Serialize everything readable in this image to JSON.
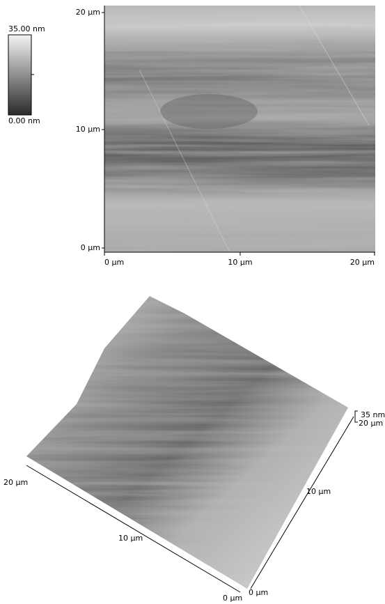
{
  "color_scale": {
    "max": "35.00 nm",
    "min": "0.00 nm"
  },
  "image_2d": {
    "y_ticks": [
      "20 µm",
      "10 µm",
      "0 µm"
    ],
    "x_ticks": [
      "0 µm",
      "10 µm",
      "20 µm"
    ]
  },
  "image_3d": {
    "z_label": "35 nm",
    "right_axis": [
      "20 µm",
      "10 µm",
      "0 µm"
    ],
    "left_axis": [
      "0 µm",
      "10 µm",
      "20 µm"
    ]
  }
}
